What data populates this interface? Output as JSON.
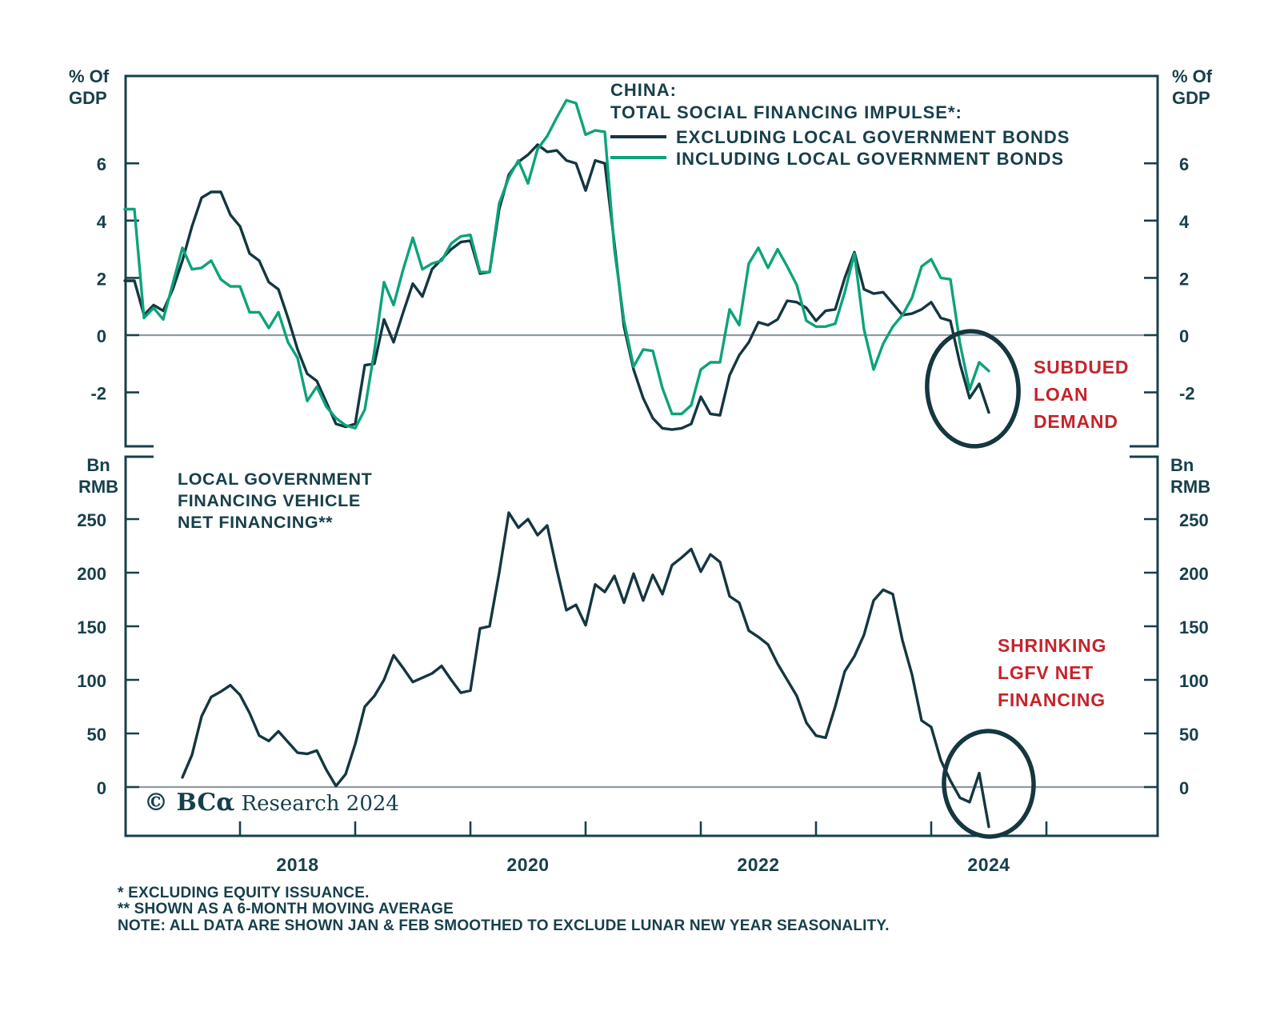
{
  "colors": {
    "ink": "#17404b",
    "line_dark": "#143740",
    "line_green": "#0da37a",
    "accent_red": "#c5242b",
    "zero_gray": "#8e9ba1",
    "background": "#ffffff"
  },
  "axes": {
    "top": {
      "unit_line1": "% Of",
      "unit_line2": "GDP",
      "yticks": [
        6,
        4,
        2,
        0,
        -2
      ]
    },
    "bottom": {
      "unit_line1": "Bn",
      "unit_line2": "RMB",
      "yticks": [
        250,
        200,
        150,
        100,
        50,
        0
      ]
    },
    "xticks_years": [
      "2018",
      "2020",
      "2022",
      "2024"
    ]
  },
  "legend": {
    "title1": "CHINA:",
    "title2": "TOTAL SOCIAL FINANCING IMPULSE*:",
    "series1": "EXCLUDING LOCAL GOVERNMENT BONDS",
    "series2": "INCLUDING LOCAL GOVERNMENT BONDS"
  },
  "panel2_title": [
    "LOCAL GOVERNMENT",
    "FINANCING VEHICLE",
    "NET FINANCING**"
  ],
  "annotations": {
    "top": [
      "SUBDUED",
      "LOAN",
      "DEMAND"
    ],
    "bottom": [
      "SHRINKING",
      "LGFV NET",
      "FINANCING"
    ]
  },
  "footnotes": [
    "* EXCLUDING EQUITY ISSUANCE.",
    "** SHOWN AS A 6-MONTH MOVING AVERAGE",
    "NOTE: ALL DATA ARE SHOWN JAN & FEB SMOOTHED TO EXCLUDE LUNAR NEW YEAR SEASONALITY."
  ],
  "copyright": {
    "brand": "© BCα",
    "rest": " Research 2024"
  },
  "chart_data": [
    {
      "type": "line",
      "title": "CHINA: TOTAL SOCIAL FINANCING IMPULSE (EXCLUDING EQUITY ISSUANCE)",
      "xlabel": "",
      "ylabel": "% Of GDP",
      "ylim": [
        -3.9,
        9.1
      ],
      "x_tick_years": [
        2018,
        2020,
        2022,
        2024
      ],
      "grid": false,
      "legend_position": "top-right",
      "x_start": 2017.0,
      "x_step_months": 1,
      "annotation": "SUBDUED LOAN DEMAND",
      "series": [
        {
          "name": "EXCLUDING LOCAL GOVERNMENT BONDS",
          "color_key": "line_dark",
          "values": [
            1.9,
            1.9,
            0.7,
            1.05,
            0.85,
            1.6,
            2.6,
            3.8,
            4.8,
            5.0,
            5.0,
            4.2,
            3.8,
            2.85,
            2.6,
            1.85,
            1.6,
            0.6,
            -0.5,
            -1.35,
            -1.6,
            -2.35,
            -3.1,
            -3.2,
            -3.1,
            -1.05,
            -1.0,
            0.55,
            -0.25,
            0.8,
            1.8,
            1.35,
            2.3,
            2.65,
            3.0,
            3.25,
            3.3,
            2.15,
            2.2,
            4.4,
            5.6,
            6.05,
            6.3,
            6.65,
            6.4,
            6.45,
            6.1,
            6.0,
            5.05,
            6.1,
            6.0,
            3.2,
            0.3,
            -1.2,
            -2.2,
            -2.9,
            -3.25,
            -3.3,
            -3.25,
            -3.1,
            -2.15,
            -2.75,
            -2.8,
            -1.4,
            -0.7,
            -0.25,
            0.45,
            0.35,
            0.55,
            1.2,
            1.15,
            0.95,
            0.5,
            0.85,
            0.9,
            2.0,
            2.9,
            1.6,
            1.45,
            1.5,
            1.1,
            0.7,
            0.75,
            0.9,
            1.15,
            0.6,
            0.5,
            -1.0,
            -2.2,
            -1.7,
            -2.7
          ]
        },
        {
          "name": "INCLUDING LOCAL GOVERNMENT BONDS",
          "color_key": "line_green",
          "values": [
            4.4,
            4.4,
            0.6,
            0.95,
            0.55,
            1.8,
            3.05,
            2.3,
            2.35,
            2.6,
            1.95,
            1.7,
            1.7,
            0.8,
            0.8,
            0.25,
            0.8,
            -0.25,
            -0.8,
            -2.3,
            -1.8,
            -2.5,
            -2.9,
            -3.15,
            -3.25,
            -2.6,
            -0.55,
            1.85,
            1.05,
            2.3,
            3.4,
            2.3,
            2.5,
            2.6,
            3.2,
            3.45,
            3.5,
            2.2,
            2.2,
            4.6,
            5.5,
            6.1,
            5.3,
            6.5,
            6.95,
            7.6,
            8.2,
            8.1,
            7.0,
            7.15,
            7.1,
            3.0,
            0.5,
            -1.1,
            -0.5,
            -0.55,
            -1.85,
            -2.75,
            -2.75,
            -2.45,
            -1.2,
            -0.95,
            -0.95,
            0.9,
            0.35,
            2.5,
            3.05,
            2.35,
            3.0,
            2.4,
            1.75,
            0.5,
            0.3,
            0.3,
            0.4,
            1.5,
            2.85,
            0.2,
            -1.2,
            -0.3,
            0.3,
            0.7,
            1.3,
            2.4,
            2.65,
            2.0,
            1.95,
            -0.3,
            -1.9,
            -0.95,
            -1.25
          ]
        }
      ]
    },
    {
      "type": "line",
      "title": "LOCAL GOVERNMENT FINANCING VEHICLE NET FINANCING (6-MONTH MOVING AVERAGE)",
      "xlabel": "",
      "ylabel": "Bn RMB",
      "ylim": [
        -45,
        310
      ],
      "x_tick_years": [
        2018,
        2020,
        2022,
        2024
      ],
      "grid": false,
      "x_start": 2017.5,
      "x_step_months": 1,
      "annotation": "SHRINKING LGFV NET FINANCING",
      "series": [
        {
          "name": "LGFV NET FINANCING",
          "color_key": "line_dark",
          "values": [
            9,
            30,
            66,
            84,
            89,
            95,
            86,
            69,
            48,
            43,
            52,
            42,
            32,
            31,
            34,
            16,
            1,
            12,
            40,
            75,
            85,
            100,
            123,
            111,
            98,
            102,
            106,
            113,
            100,
            88,
            90,
            148,
            150,
            200,
            256,
            242,
            250,
            235,
            244,
            203,
            165,
            170,
            151,
            189,
            182,
            197,
            172,
            199,
            174,
            198,
            180,
            207,
            214,
            222,
            201,
            217,
            210,
            178,
            172,
            146,
            140,
            133,
            115,
            100,
            85,
            60,
            48,
            46,
            75,
            108,
            122,
            142,
            174,
            184,
            180,
            137,
            105,
            62,
            56,
            25,
            6,
            -10,
            -14,
            13,
            -37
          ]
        }
      ]
    }
  ]
}
